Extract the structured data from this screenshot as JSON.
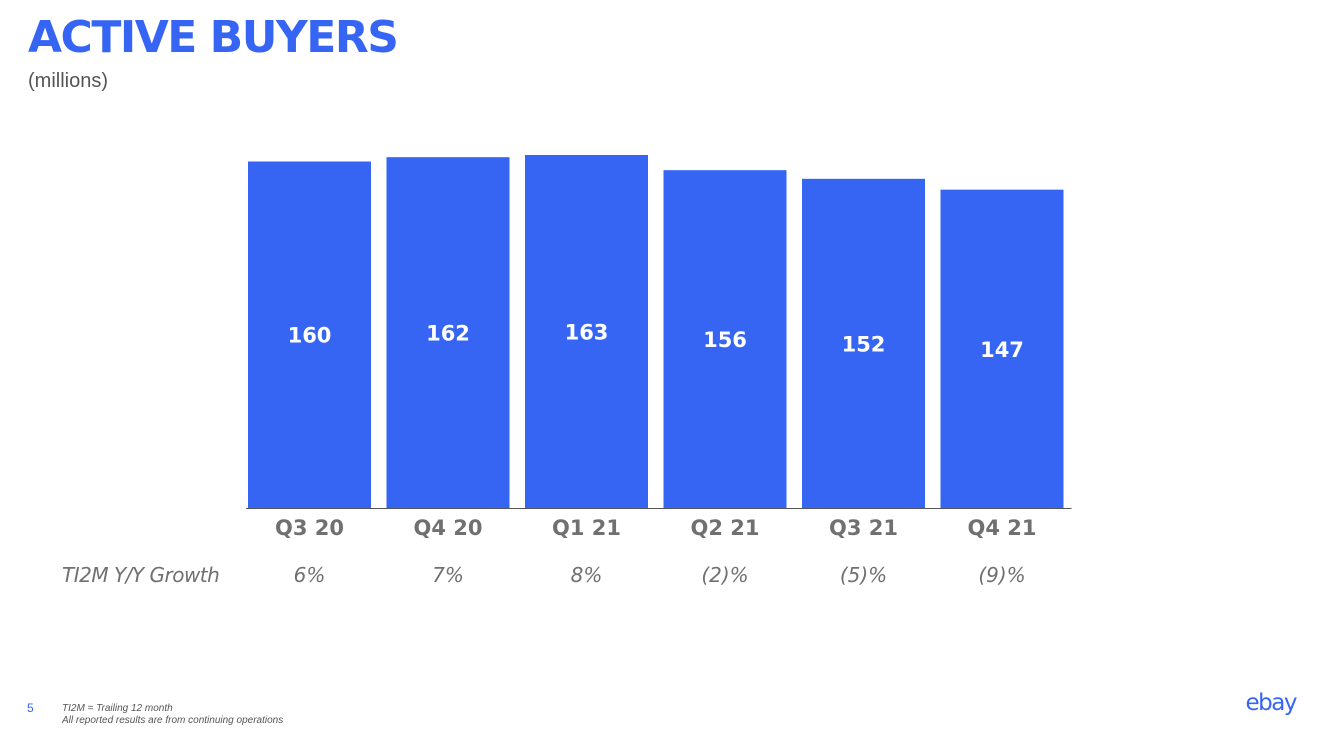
{
  "slide": {
    "title": "ACTIVE BUYERS",
    "subtitle": "(millions)",
    "growth_row_label": "TI2M Y/Y Growth",
    "page_number": "5",
    "footnotes": [
      "TI2M = Trailing 12 month",
      "All reported results are from continuing operations"
    ],
    "logo_text": "ebay"
  },
  "chart_data": {
    "type": "bar",
    "title": "ACTIVE BUYERS",
    "ylabel": "(millions)",
    "categories": [
      "Q3 20",
      "Q4 20",
      "Q1 21",
      "Q2 21",
      "Q3 21",
      "Q4 21"
    ],
    "values": [
      160,
      162,
      163,
      156,
      152,
      147
    ],
    "value_labels": [
      "160",
      "162",
      "163",
      "156",
      "152",
      "147"
    ],
    "growth": [
      "6%",
      "7%",
      "8%",
      "(2)%",
      "(5)%",
      "(9)%"
    ],
    "ylim": [
      0,
      163
    ],
    "grid": false,
    "bar_color": "#3665f3"
  },
  "colors": {
    "accent": "#3665f3",
    "text_gray": "#707070"
  }
}
